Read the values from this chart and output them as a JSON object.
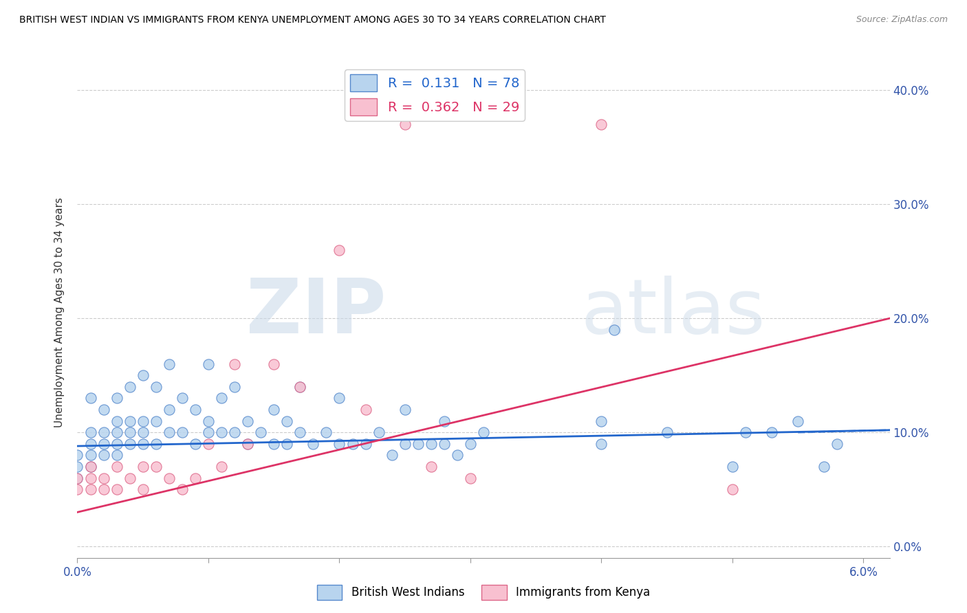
{
  "title": "BRITISH WEST INDIAN VS IMMIGRANTS FROM KENYA UNEMPLOYMENT AMONG AGES 30 TO 34 YEARS CORRELATION CHART",
  "source": "Source: ZipAtlas.com",
  "ylabel": "Unemployment Among Ages 30 to 34 years",
  "xlim": [
    0.0,
    0.062
  ],
  "ylim": [
    -0.01,
    0.42
  ],
  "xtick_pos": [
    0.0,
    0.01,
    0.02,
    0.03,
    0.04,
    0.05,
    0.06
  ],
  "xticklabels": [
    "0.0%",
    "",
    "",
    "",
    "",
    "",
    "6.0%"
  ],
  "ytick_positions": [
    0.0,
    0.1,
    0.2,
    0.3,
    0.4
  ],
  "ytick_labels_right": [
    "0.0%",
    "10.0%",
    "20.0%",
    "30.0%",
    "40.0%"
  ],
  "blue_face_color": "#b8d4ee",
  "blue_edge_color": "#5588cc",
  "pink_face_color": "#f8c0d0",
  "pink_edge_color": "#dd6688",
  "blue_line_color": "#2266cc",
  "pink_line_color": "#dd3366",
  "R_blue": "0.131",
  "N_blue": "78",
  "R_pink": "0.362",
  "N_pink": "29",
  "legend_label_blue": "British West Indians",
  "legend_label_pink": "Immigrants from Kenya",
  "watermark_zip": "ZIP",
  "watermark_atlas": "atlas",
  "background_color": "#ffffff",
  "blue_trend_x": [
    0.0,
    0.062
  ],
  "blue_trend_y": [
    0.088,
    0.102
  ],
  "pink_trend_x": [
    0.0,
    0.062
  ],
  "pink_trend_y": [
    0.03,
    0.2
  ],
  "blue_scatter_x": [
    0.0,
    0.0,
    0.0,
    0.001,
    0.001,
    0.001,
    0.001,
    0.001,
    0.002,
    0.002,
    0.002,
    0.002,
    0.003,
    0.003,
    0.003,
    0.003,
    0.003,
    0.004,
    0.004,
    0.004,
    0.004,
    0.005,
    0.005,
    0.005,
    0.005,
    0.006,
    0.006,
    0.006,
    0.007,
    0.007,
    0.007,
    0.008,
    0.008,
    0.009,
    0.009,
    0.01,
    0.01,
    0.01,
    0.011,
    0.011,
    0.012,
    0.012,
    0.013,
    0.013,
    0.014,
    0.015,
    0.015,
    0.016,
    0.016,
    0.017,
    0.017,
    0.018,
    0.019,
    0.02,
    0.02,
    0.021,
    0.022,
    0.023,
    0.024,
    0.025,
    0.025,
    0.026,
    0.027,
    0.028,
    0.028,
    0.029,
    0.03,
    0.031,
    0.04,
    0.04,
    0.041,
    0.045,
    0.05,
    0.051,
    0.053,
    0.055,
    0.057,
    0.058
  ],
  "blue_scatter_y": [
    0.06,
    0.07,
    0.08,
    0.07,
    0.08,
    0.09,
    0.1,
    0.13,
    0.08,
    0.09,
    0.1,
    0.12,
    0.08,
    0.09,
    0.1,
    0.11,
    0.13,
    0.09,
    0.1,
    0.11,
    0.14,
    0.09,
    0.1,
    0.11,
    0.15,
    0.09,
    0.11,
    0.14,
    0.1,
    0.12,
    0.16,
    0.1,
    0.13,
    0.09,
    0.12,
    0.1,
    0.11,
    0.16,
    0.1,
    0.13,
    0.1,
    0.14,
    0.09,
    0.11,
    0.1,
    0.09,
    0.12,
    0.09,
    0.11,
    0.1,
    0.14,
    0.09,
    0.1,
    0.09,
    0.13,
    0.09,
    0.09,
    0.1,
    0.08,
    0.09,
    0.12,
    0.09,
    0.09,
    0.09,
    0.11,
    0.08,
    0.09,
    0.1,
    0.09,
    0.11,
    0.19,
    0.1,
    0.07,
    0.1,
    0.1,
    0.11,
    0.07,
    0.09
  ],
  "pink_scatter_x": [
    0.0,
    0.0,
    0.001,
    0.001,
    0.001,
    0.002,
    0.002,
    0.003,
    0.003,
    0.004,
    0.005,
    0.005,
    0.006,
    0.007,
    0.008,
    0.009,
    0.01,
    0.011,
    0.012,
    0.013,
    0.015,
    0.017,
    0.02,
    0.022,
    0.025,
    0.027,
    0.03,
    0.04,
    0.05
  ],
  "pink_scatter_y": [
    0.05,
    0.06,
    0.05,
    0.06,
    0.07,
    0.05,
    0.06,
    0.05,
    0.07,
    0.06,
    0.05,
    0.07,
    0.07,
    0.06,
    0.05,
    0.06,
    0.09,
    0.07,
    0.16,
    0.09,
    0.16,
    0.14,
    0.26,
    0.12,
    0.37,
    0.07,
    0.06,
    0.37,
    0.05
  ]
}
